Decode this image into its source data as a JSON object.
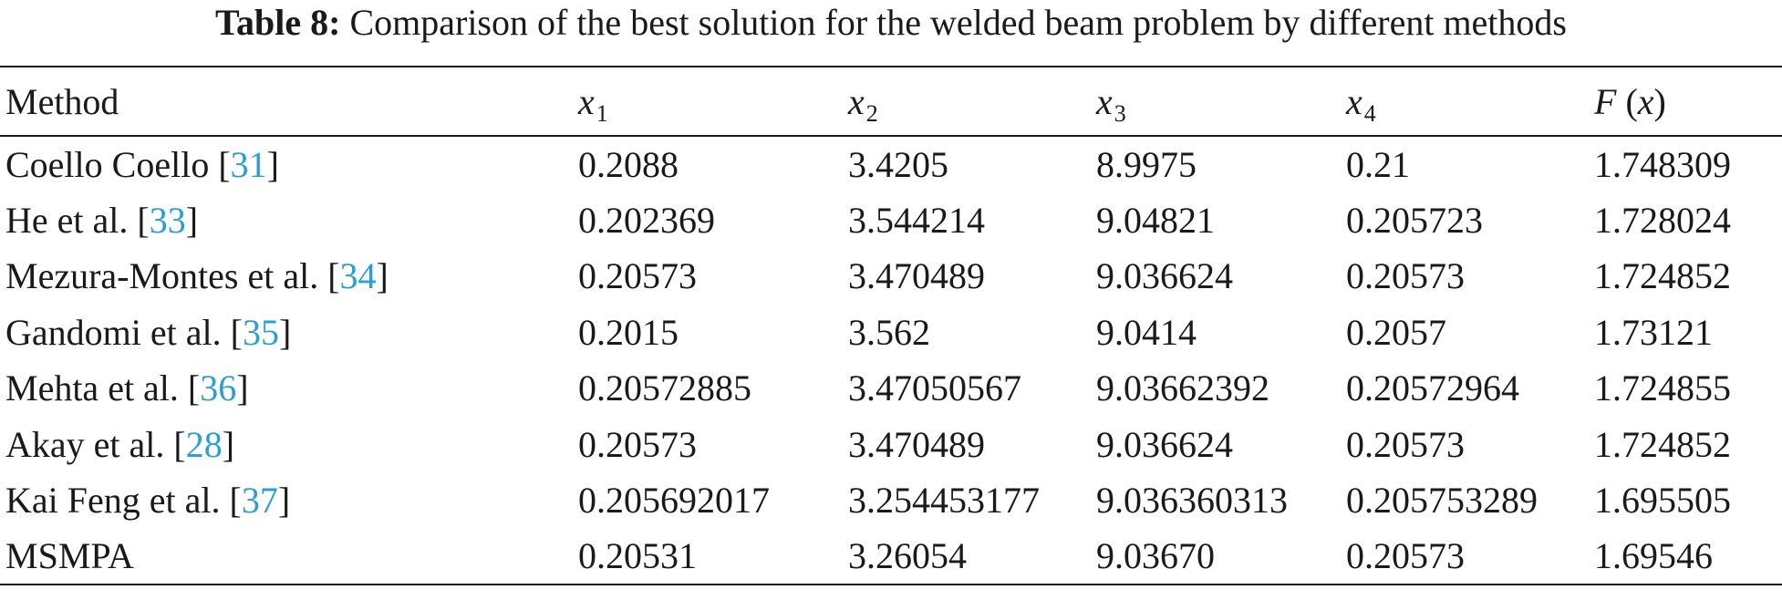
{
  "caption": {
    "label": "Table 8:",
    "text": "Comparison of the best solution for the welded beam problem by different methods"
  },
  "table": {
    "headers": {
      "method": "Method",
      "x1": {
        "var": "x",
        "sub": "1"
      },
      "x2": {
        "var": "x",
        "sub": "2"
      },
      "x3": {
        "var": "x",
        "sub": "3"
      },
      "x4": {
        "var": "x",
        "sub": "4"
      },
      "fx": {
        "f": "F",
        "open": " (",
        "var": "x",
        "close": ")"
      }
    },
    "rows": [
      {
        "method": "Coello Coello ",
        "ref": "31",
        "x1": "0.2088",
        "x2": "3.4205",
        "x3": "8.9975",
        "x4": "0.21",
        "fx": "1.748309"
      },
      {
        "method": "He et al. ",
        "ref": "33",
        "x1": "0.202369",
        "x2": "3.544214",
        "x3": "9.04821",
        "x4": "0.205723",
        "fx": "1.728024"
      },
      {
        "method": "Mezura-Montes et al. ",
        "ref": "34",
        "x1": "0.20573",
        "x2": "3.470489",
        "x3": "9.036624",
        "x4": "0.20573",
        "fx": "1.724852"
      },
      {
        "method": "Gandomi et al. ",
        "ref": "35",
        "x1": "0.2015",
        "x2": "3.562",
        "x3": "9.0414",
        "x4": "0.2057",
        "fx": "1.73121"
      },
      {
        "method": "Mehta et al. ",
        "ref": "36",
        "x1": "0.20572885",
        "x2": "3.47050567",
        "x3": "9.03662392",
        "x4": "0.20572964",
        "fx": "1.724855"
      },
      {
        "method": "Akay et al. ",
        "ref": "28",
        "x1": "0.20573",
        "x2": "3.470489",
        "x3": "9.036624",
        "x4": "0.20573",
        "fx": "1.724852"
      },
      {
        "method": "Kai Feng et al. ",
        "ref": "37",
        "x1": "0.205692017",
        "x2": "3.254453177",
        "x3": "9.036360313",
        "x4": "0.205753289",
        "fx": "1.695505"
      },
      {
        "method": "MSMPA",
        "x1": "0.20531",
        "x2": "3.26054",
        "x3": "9.03670",
        "x4": "0.20573",
        "fx": "1.69546"
      }
    ]
  },
  "colors": {
    "text": "#1a1a1a",
    "reference_link": "#2b9fd0",
    "background": "#ffffff"
  }
}
